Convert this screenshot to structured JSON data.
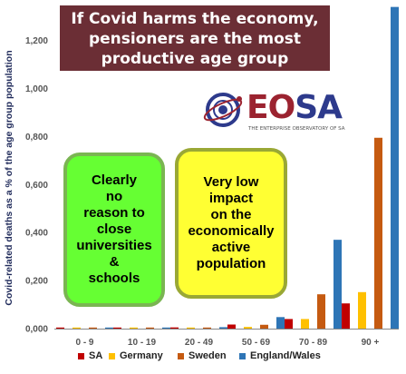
{
  "header": {
    "title_lines": [
      "If Covid harms the economy,",
      "pensioners are the most",
      "productive age group"
    ]
  },
  "logo": {
    "text_eo": "EO",
    "text_sa": "SA",
    "subtitle": "THE ENTERPRISE OBSERVATORY OF SA"
  },
  "callouts": {
    "green": {
      "lines": [
        "Clearly",
        "no",
        "reason to",
        "close",
        "universities",
        "&",
        "schools"
      ],
      "color": "#66ff33"
    },
    "yellow": {
      "lines": [
        "Very low",
        "impact",
        "on the",
        "economically",
        "active",
        "population"
      ],
      "color": "#ffff33"
    }
  },
  "chart_data": {
    "type": "bar",
    "ylabel": "Covid-related deaths as a % of the age group population",
    "ylim": [
      0,
      1.35
    ],
    "yticks": [
      "0,000",
      "0,200",
      "0,400",
      "0,600",
      "0,800",
      "1,000",
      "1,200"
    ],
    "categories": [
      "0 - 9",
      "10 - 19",
      "20 - 49",
      "50 - 69",
      "70 - 89",
      "90 +"
    ],
    "series": [
      {
        "name": "SA",
        "color": "#c00000",
        "values": [
          0.003,
          0.003,
          0.005,
          0.017,
          0.04,
          0.105
        ]
      },
      {
        "name": "Germany",
        "color": "#ffc000",
        "values": [
          0.001,
          0.001,
          0.002,
          0.007,
          0.04,
          0.152
        ]
      },
      {
        "name": "Sweden",
        "color": "#c55a11",
        "values": [
          0.001,
          0.001,
          0.003,
          0.016,
          0.143,
          0.795
        ]
      },
      {
        "name": "England/Wales",
        "color": "#2e75b6",
        "values": [
          0.001,
          0.001,
          0.006,
          0.048,
          0.37,
          1.34
        ]
      }
    ],
    "legend_position": "bottom",
    "grid": false
  }
}
